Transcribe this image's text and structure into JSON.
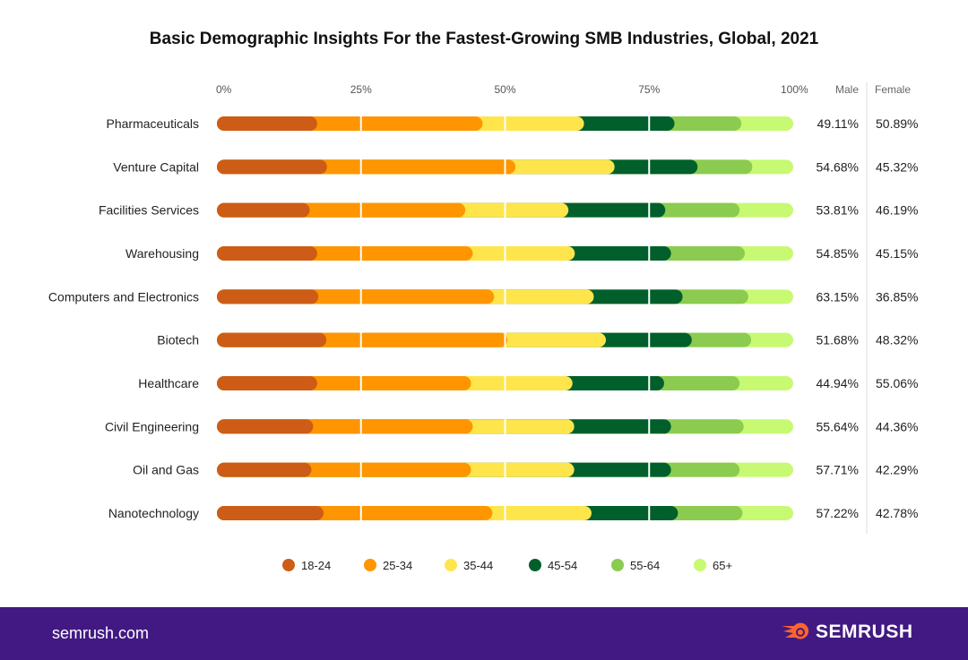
{
  "chart_data": {
    "type": "bar",
    "stacked": true,
    "orientation": "horizontal",
    "title": "Basic Demographic Insights For the Fastest-Growing SMB Industries, Global, 2021",
    "xlim": [
      0,
      100
    ],
    "x_ticks": [
      "0%",
      "25%",
      "50%",
      "75%",
      "100%"
    ],
    "categories": [
      "Pharmaceuticals",
      "Venture Capital",
      "Facilities Services",
      "Warehousing",
      "Computers and Electronics",
      "Biotech",
      "Healthcare",
      "Civil Engineering",
      "Oil and Gas",
      "Nanotechnology"
    ],
    "series": [
      {
        "name": "18-24",
        "color": "#cd5c16",
        "values": [
          17.4,
          19.1,
          16.1,
          17.4,
          17.6,
          19.0,
          17.4,
          16.7,
          16.4,
          18.5
        ]
      },
      {
        "name": "25-34",
        "color": "#ff9500",
        "values": [
          28.7,
          32.7,
          27.0,
          27.0,
          30.5,
          31.4,
          26.7,
          27.7,
          27.7,
          29.3
        ]
      },
      {
        "name": "35-44",
        "color": "#ffe54c",
        "values": [
          17.6,
          17.2,
          17.9,
          17.7,
          17.3,
          17.1,
          17.6,
          17.6,
          17.9,
          17.2
        ]
      },
      {
        "name": "45-54",
        "color": "#005f2b",
        "values": [
          15.7,
          14.4,
          16.8,
          16.7,
          15.4,
          14.9,
          15.9,
          16.8,
          16.8,
          15.0
        ]
      },
      {
        "name": "55-64",
        "color": "#8bcb50",
        "values": [
          11.6,
          9.5,
          12.9,
          12.8,
          11.4,
          10.3,
          13.1,
          12.6,
          11.9,
          11.2
        ]
      },
      {
        "name": "65+",
        "color": "#c7f972",
        "values": [
          9.0,
          7.1,
          9.3,
          8.4,
          7.8,
          7.3,
          9.3,
          8.6,
          9.3,
          8.8
        ]
      }
    ],
    "gender_headers": {
      "male": "Male",
      "female": "Female"
    },
    "male": [
      "49.11%",
      "54.68%",
      "53.81%",
      "54.85%",
      "63.15%",
      "51.68%",
      "44.94%",
      "55.64%",
      "57.71%",
      "57.22%"
    ],
    "female": [
      "50.89%",
      "45.32%",
      "46.19%",
      "45.15%",
      "36.85%",
      "48.32%",
      "55.06%",
      "44.36%",
      "42.29%",
      "42.78%"
    ],
    "legend_position": "bottom-center"
  },
  "footer": {
    "site": "semrush.com",
    "brand": "SEMRUSH",
    "brand_color": "#ff642d",
    "bg": "#421983"
  }
}
